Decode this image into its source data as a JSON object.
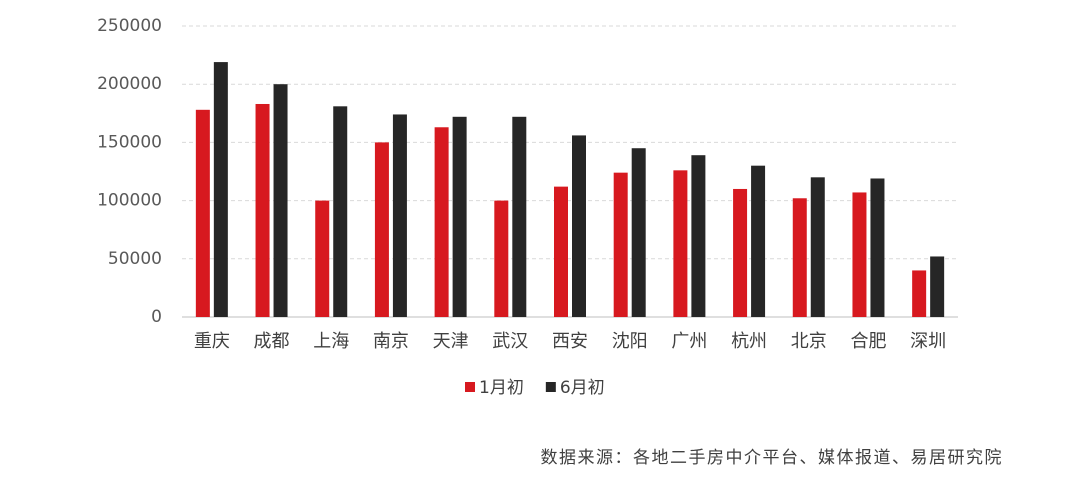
{
  "chart_data": {
    "type": "bar",
    "categories": [
      "重庆",
      "成都",
      "上海",
      "南京",
      "天津",
      "武汉",
      "西安",
      "沈阳",
      "广州",
      "杭州",
      "北京",
      "合肥",
      "深圳"
    ],
    "series": [
      {
        "name": "1月初",
        "color": "#d7191f",
        "values": [
          178000,
          183000,
          100000,
          150000,
          163000,
          100000,
          112000,
          124000,
          126000,
          110000,
          102000,
          107000,
          40000
        ]
      },
      {
        "name": "6月初",
        "color": "#262626",
        "values": [
          219000,
          200000,
          181000,
          174000,
          172000,
          172000,
          156000,
          145000,
          139000,
          130000,
          120000,
          119000,
          52000
        ]
      }
    ],
    "ylim": [
      0,
      250000
    ],
    "yticks": [
      0,
      50000,
      100000,
      150000,
      200000,
      250000
    ],
    "grid": true,
    "legend": "bottom",
    "source": "数据来源：各地二手房中介平台、媒体报道、易居研究院"
  }
}
